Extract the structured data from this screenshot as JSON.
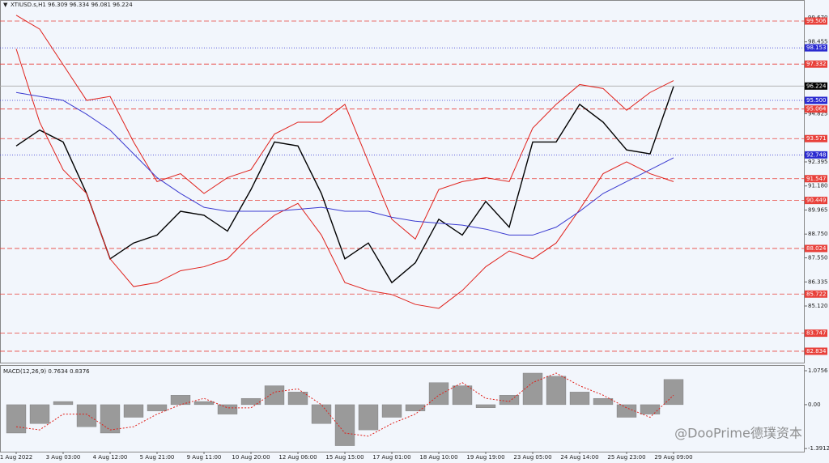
{
  "chart_data": [
    {
      "type": "line",
      "title": "XTIUSD.s,H1  96.309 96.334 96.081 96.224",
      "categories": [
        "1 Aug 2022",
        null,
        "3 Aug 03:00",
        null,
        "4 Aug 12:00",
        null,
        "5 Aug 21:00",
        null,
        "9 Aug 11:00",
        null,
        "10 Aug 20:00",
        null,
        "12 Aug 06:00",
        null,
        "15 Aug 15:00",
        null,
        "17 Aug 01:00",
        null,
        "18 Aug 10:00",
        null,
        "19 Aug 19:00",
        null,
        "23 Aug 05:00",
        null,
        "24 Aug 14:00",
        null,
        "25 Aug 23:00",
        null,
        "29 Aug 09:00"
      ],
      "series": [
        {
          "color": "#000000",
          "values": [
            93.2,
            94.0,
            93.4,
            90.8,
            87.5,
            88.3,
            88.7,
            89.9,
            89.7,
            88.9,
            91.0,
            93.4,
            93.2,
            90.8,
            87.5,
            88.3,
            86.3,
            87.3,
            89.5,
            88.7,
            90.4,
            89.1,
            93.4,
            93.4,
            95.3,
            94.4,
            93.0,
            92.8,
            96.2
          ]
        },
        {
          "color": "#e0201a",
          "values": [
            99.8,
            99.1,
            97.3,
            95.5,
            95.7,
            93.4,
            91.4,
            91.8,
            90.8,
            91.6,
            92.0,
            93.8,
            94.4,
            94.4,
            95.3,
            92.4,
            89.5,
            88.5,
            91.0,
            91.4,
            91.6,
            91.4,
            94.1,
            95.3,
            96.3,
            96.1,
            95.0,
            95.9,
            96.5
          ]
        },
        {
          "color": "#e0201a",
          "values": [
            98.1,
            94.4,
            92.0,
            90.8,
            87.5,
            86.1,
            86.3,
            86.9,
            87.1,
            87.5,
            88.7,
            89.7,
            90.3,
            88.7,
            86.3,
            85.9,
            85.7,
            85.2,
            85.0,
            85.9,
            87.1,
            87.9,
            87.5,
            88.3,
            90.0,
            91.8,
            92.4,
            91.8,
            91.4
          ]
        },
        {
          "color": "#3a3ad0",
          "values": [
            95.9,
            95.7,
            95.5,
            94.8,
            94.0,
            92.8,
            91.6,
            90.8,
            90.1,
            89.9,
            89.9,
            89.9,
            90.0,
            90.1,
            89.9,
            89.9,
            89.6,
            89.4,
            89.3,
            89.2,
            89.0,
            88.7,
            88.7,
            89.1,
            89.9,
            90.8,
            91.4,
            92.0,
            92.6
          ]
        }
      ],
      "ylim": [
        82.26,
        100.16
      ],
      "yticks": [
        {
          "value": 99.67,
          "label": "99.670"
        },
        98.455,
        94.825,
        92.395,
        {
          "value": 91.18,
          "label": "91.180"
        },
        89.965,
        {
          "value": 88.75,
          "label": "88.750"
        },
        {
          "value": 87.55,
          "label": "87.550"
        },
        86.335,
        {
          "value": 85.12,
          "label": "85.120"
        }
      ],
      "levels": [
        {
          "value": 99.506,
          "color": "#e8403a"
        },
        {
          "value": 98.153,
          "color": "#2a2ad0"
        },
        {
          "value": 97.332,
          "color": "#e8403a"
        },
        {
          "value": 96.224,
          "color": "#000000"
        },
        {
          "value": 95.5,
          "label": "95.500",
          "color": "#2a2ad0"
        },
        {
          "value": 95.064,
          "color": "#e8403a"
        },
        {
          "value": 93.571,
          "color": "#e8403a"
        },
        {
          "value": 92.748,
          "color": "#2a2ad0"
        },
        {
          "value": 91.547,
          "color": "#e8403a"
        },
        {
          "value": 90.449,
          "color": "#e8403a"
        },
        {
          "value": 88.024,
          "color": "#e8403a"
        },
        {
          "value": 85.722,
          "color": "#e8403a"
        },
        {
          "value": 83.747,
          "color": "#e8403a"
        },
        {
          "value": 82.834,
          "color": "#e8403a"
        }
      ],
      "watermark": "@DooPrime德璞资本"
    },
    {
      "type": "bar",
      "title": "MACD(12,26,9) 0.7634 0.8376",
      "color": "#9a9a9a",
      "signal_color": "#e0201a",
      "values": [
        -0.9,
        -0.6,
        0.1,
        -0.7,
        -0.9,
        -0.4,
        -0.2,
        0.3,
        0.1,
        -0.3,
        0.2,
        0.6,
        0.4,
        -0.6,
        -1.3,
        -0.8,
        -0.4,
        -0.2,
        0.7,
        0.6,
        -0.1,
        0.3,
        1.0,
        0.9,
        0.4,
        0.2,
        -0.4,
        -0.3,
        0.8
      ],
      "signal": [
        -0.7,
        -0.8,
        -0.3,
        -0.3,
        -0.8,
        -0.7,
        -0.3,
        0.0,
        0.2,
        -0.1,
        -0.1,
        0.4,
        0.5,
        0.0,
        -0.9,
        -1.0,
        -0.6,
        -0.3,
        0.3,
        0.7,
        0.2,
        0.1,
        0.7,
        1.0,
        0.6,
        0.3,
        -0.1,
        -0.4,
        0.3
      ],
      "ylim": [
        -1.49,
        1.23
      ],
      "yticks": [
        1.0756,
        {
          "value": 0,
          "label": "0.00"
        },
        -1.3912
      ]
    }
  ]
}
